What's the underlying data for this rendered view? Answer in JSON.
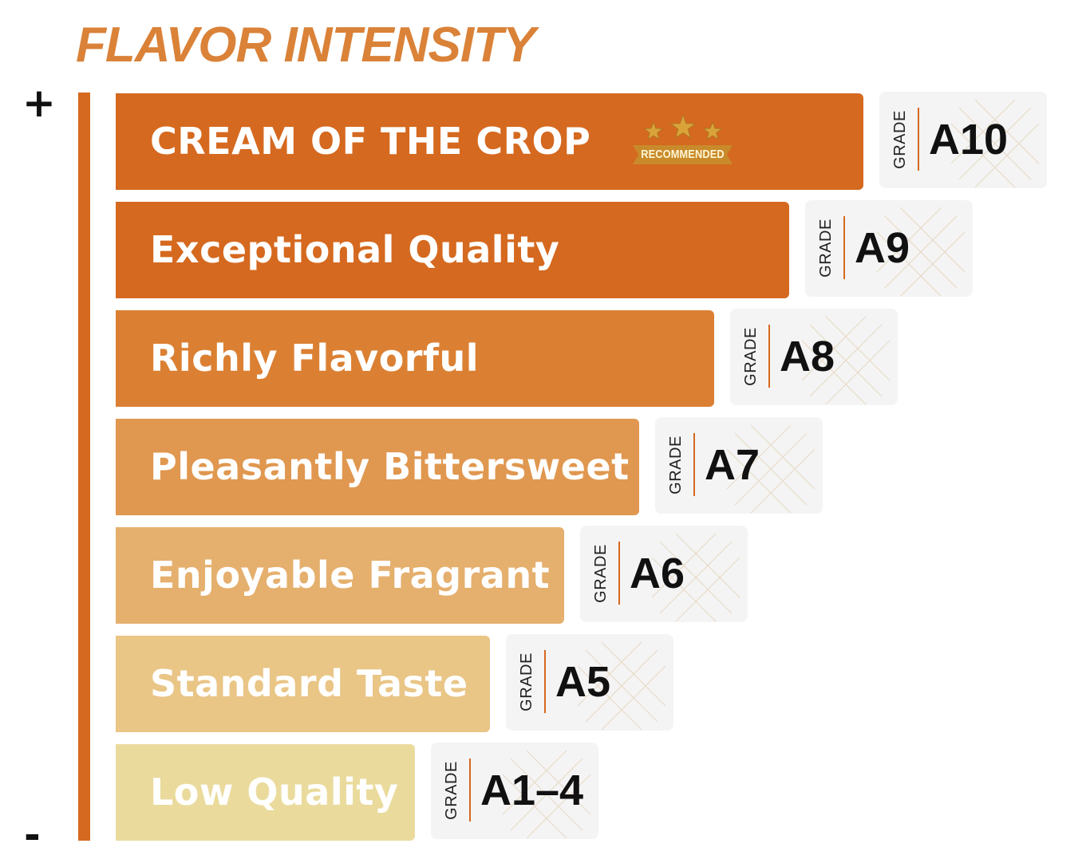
{
  "title": "FLAVOR INTENSITY",
  "axis": {
    "top_label": "+",
    "bottom_label": "-"
  },
  "colors": {
    "title": "#DA8238",
    "axis": "#D5691F",
    "separator": "#D5691F",
    "card_bg": "#F4F4F4"
  },
  "grade_word": "GRADE",
  "badge": {
    "label": "RECOMMENDED",
    "stars": 3,
    "star_color": "#D9A33A",
    "ribbon_color": "#C98A2B"
  },
  "levels": [
    {
      "label": "CREAM OF THE CROP",
      "grade": "A10",
      "color": "#D5691F",
      "intensity": 7,
      "recommended": true
    },
    {
      "label": "Exceptional Quality",
      "grade": "A9",
      "color": "#D5691F",
      "intensity": 6,
      "recommended": false
    },
    {
      "label": "Richly Flavorful",
      "grade": "A8",
      "color": "#DB8033",
      "intensity": 5,
      "recommended": false
    },
    {
      "label": "Pleasantly Bittersweet",
      "grade": "A7",
      "color": "#E0974F",
      "intensity": 4,
      "recommended": false
    },
    {
      "label": "Enjoyable Fragrant",
      "grade": "A6",
      "color": "#E5AF6D",
      "intensity": 3,
      "recommended": false
    },
    {
      "label": "Standard Taste",
      "grade": "A5",
      "color": "#E9C586",
      "intensity": 2,
      "recommended": false
    },
    {
      "label": "Low Quality",
      "grade": "A1–4",
      "color": "#EADB9D",
      "intensity": 1,
      "recommended": false
    }
  ]
}
